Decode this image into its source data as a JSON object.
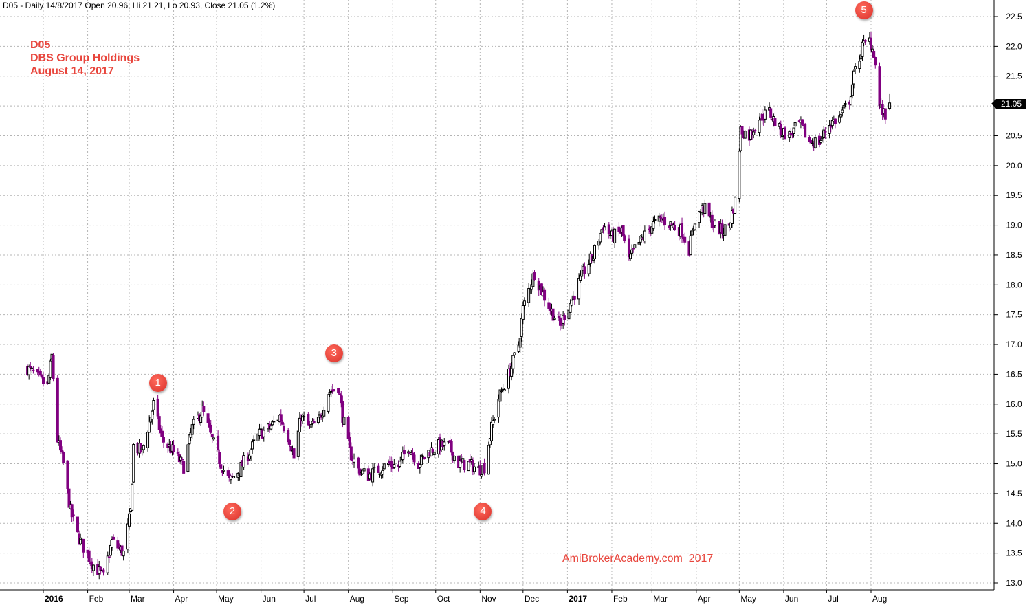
{
  "header": {
    "info_line": "D05 - Daily 14/8/2017 Open 20.96, Hi 21.21, Lo 20.93, Close 21.05 (1.2%)"
  },
  "title_block": {
    "symbol": "D05",
    "company": "DBS Group Holdings",
    "date": "August 14, 2017"
  },
  "watermark": "AmiBrokerAcademy.com  2017",
  "last_price_tag": "21.05",
  "markers": [
    "1",
    "2",
    "3",
    "4",
    "5"
  ],
  "colors": {
    "up_candle": "#000000",
    "down_candle": "#800080",
    "marker": "#e8453c",
    "annotation_text": "#e8453c",
    "grid": "#b4b4b4"
  },
  "chart_data": {
    "type": "candlestick",
    "ylim": [
      12.9,
      22.7
    ],
    "y_ticks": [
      "13.0",
      "13.5",
      "14.0",
      "14.5",
      "15.0",
      "15.5",
      "16.0",
      "16.5",
      "17.0",
      "17.5",
      "18.0",
      "18.5",
      "19.0",
      "19.5",
      "20.0",
      "20.5",
      "21.0",
      "21.5",
      "22.0",
      "22.5"
    ],
    "x_tick_labels": [
      "2016",
      "Feb",
      "Mar",
      "Apr",
      "May",
      "Jun",
      "Jul",
      "Aug",
      "Sep",
      "Oct",
      "Nov",
      "Dec",
      "2017",
      "Feb",
      "Mar",
      "Apr",
      "May",
      "Jun",
      "Jul",
      "Aug"
    ],
    "x_tick_dates": [
      "2016-01-01",
      "2016-02-01",
      "2016-03-01",
      "2016-04-01",
      "2016-05-01",
      "2016-06-01",
      "2016-07-01",
      "2016-08-01",
      "2016-09-01",
      "2016-10-01",
      "2016-11-01",
      "2016-12-01",
      "2017-01-01",
      "2017-02-01",
      "2017-03-01",
      "2017-04-01",
      "2017-05-01",
      "2017-06-01",
      "2017-07-01",
      "2017-08-01"
    ],
    "price_path": [
      [
        "2015-12-21",
        16.6
      ],
      [
        "2016-01-04",
        16.3
      ],
      [
        "2016-01-07",
        16.8
      ],
      [
        "2016-01-11",
        15.4
      ],
      [
        "2016-01-15",
        15.0
      ],
      [
        "2016-01-20",
        14.2
      ],
      [
        "2016-01-25",
        13.8
      ],
      [
        "2016-01-29",
        13.6
      ],
      [
        "2016-02-05",
        13.3
      ],
      [
        "2016-02-12",
        13.1
      ],
      [
        "2016-02-18",
        13.7
      ],
      [
        "2016-02-26",
        13.5
      ],
      [
        "2016-03-02",
        14.2
      ],
      [
        "2016-03-04",
        15.3
      ],
      [
        "2016-03-10",
        15.2
      ],
      [
        "2016-03-18",
        16.0
      ],
      [
        "2016-03-24",
        15.4
      ],
      [
        "2016-04-01",
        15.2
      ],
      [
        "2016-04-08",
        14.95
      ],
      [
        "2016-04-14",
        15.6
      ],
      [
        "2016-04-21",
        15.9
      ],
      [
        "2016-04-28",
        15.4
      ],
      [
        "2016-05-04",
        15.0
      ],
      [
        "2016-05-10",
        14.7
      ],
      [
        "2016-05-17",
        14.9
      ],
      [
        "2016-05-24",
        15.2
      ],
      [
        "2016-05-31",
        15.5
      ],
      [
        "2016-06-07",
        15.6
      ],
      [
        "2016-06-14",
        15.8
      ],
      [
        "2016-06-21",
        15.4
      ],
      [
        "2016-06-24",
        15.1
      ],
      [
        "2016-06-29",
        15.8
      ],
      [
        "2016-07-05",
        15.6
      ],
      [
        "2016-07-11",
        15.7
      ],
      [
        "2016-07-18",
        16.2
      ],
      [
        "2016-07-25",
        16.3
      ],
      [
        "2016-07-28",
        15.8
      ],
      [
        "2016-08-02",
        15.2
      ],
      [
        "2016-08-08",
        14.9
      ],
      [
        "2016-08-15",
        14.8
      ],
      [
        "2016-08-22",
        14.9
      ],
      [
        "2016-08-29",
        15.0
      ],
      [
        "2016-09-05",
        14.95
      ],
      [
        "2016-09-12",
        15.3
      ],
      [
        "2016-09-19",
        15.0
      ],
      [
        "2016-09-26",
        15.2
      ],
      [
        "2016-10-03",
        15.3
      ],
      [
        "2016-10-10",
        15.3
      ],
      [
        "2016-10-17",
        15.0
      ],
      [
        "2016-10-24",
        15.0
      ],
      [
        "2016-10-31",
        14.9
      ],
      [
        "2016-11-04",
        14.95
      ],
      [
        "2016-11-09",
        15.6
      ],
      [
        "2016-11-14",
        16.1
      ],
      [
        "2016-11-21",
        16.5
      ],
      [
        "2016-11-28",
        17.0
      ],
      [
        "2016-12-01",
        17.6
      ],
      [
        "2016-12-06",
        18.0
      ],
      [
        "2016-12-09",
        18.2
      ],
      [
        "2016-12-14",
        17.9
      ],
      [
        "2016-12-20",
        17.6
      ],
      [
        "2016-12-27",
        17.3
      ],
      [
        "2016-12-30",
        17.5
      ],
      [
        "2017-01-05",
        17.8
      ],
      [
        "2017-01-12",
        18.2
      ],
      [
        "2017-01-19",
        18.5
      ],
      [
        "2017-01-26",
        19.0
      ],
      [
        "2017-02-01",
        18.8
      ],
      [
        "2017-02-08",
        18.9
      ],
      [
        "2017-02-13",
        18.4
      ],
      [
        "2017-02-17",
        18.6
      ],
      [
        "2017-02-23",
        18.8
      ],
      [
        "2017-03-01",
        19.0
      ],
      [
        "2017-03-08",
        19.1
      ],
      [
        "2017-03-15",
        19.0
      ],
      [
        "2017-03-22",
        18.9
      ],
      [
        "2017-03-27",
        18.6
      ],
      [
        "2017-03-31",
        19.1
      ],
      [
        "2017-04-06",
        19.3
      ],
      [
        "2017-04-13",
        19.0
      ],
      [
        "2017-04-19",
        18.9
      ],
      [
        "2017-04-24",
        19.0
      ],
      [
        "2017-04-28",
        19.4
      ],
      [
        "2017-05-02",
        20.6
      ],
      [
        "2017-05-08",
        20.5
      ],
      [
        "2017-05-15",
        20.8
      ],
      [
        "2017-05-22",
        20.9
      ],
      [
        "2017-05-29",
        20.6
      ],
      [
        "2017-06-05",
        20.5
      ],
      [
        "2017-06-12",
        20.7
      ],
      [
        "2017-06-19",
        20.4
      ],
      [
        "2017-06-26",
        20.4
      ],
      [
        "2017-07-03",
        20.7
      ],
      [
        "2017-07-10",
        20.8
      ],
      [
        "2017-07-17",
        21.1
      ],
      [
        "2017-07-20",
        21.5
      ],
      [
        "2017-07-26",
        22.0
      ],
      [
        "2017-07-31",
        22.1
      ],
      [
        "2017-08-03",
        21.9
      ],
      [
        "2017-08-07",
        21.0
      ],
      [
        "2017-08-11",
        20.8
      ],
      [
        "2017-08-14",
        21.05
      ]
    ],
    "marker_points": [
      {
        "label": "1",
        "date": "2016-03-21",
        "value": 16.35,
        "position": "above"
      },
      {
        "label": "2",
        "date": "2016-05-12",
        "value": 14.2,
        "position": "below"
      },
      {
        "label": "3",
        "date": "2016-07-22",
        "value": 16.85,
        "position": "above"
      },
      {
        "label": "4",
        "date": "2016-11-03",
        "value": 14.2,
        "position": "below"
      },
      {
        "label": "5",
        "date": "2017-07-27",
        "value": 22.6,
        "position": "above"
      }
    ],
    "last_bar": {
      "date": "2017-08-14",
      "open": 20.96,
      "high": 21.21,
      "low": 20.93,
      "close": 21.05
    },
    "grid": true
  }
}
